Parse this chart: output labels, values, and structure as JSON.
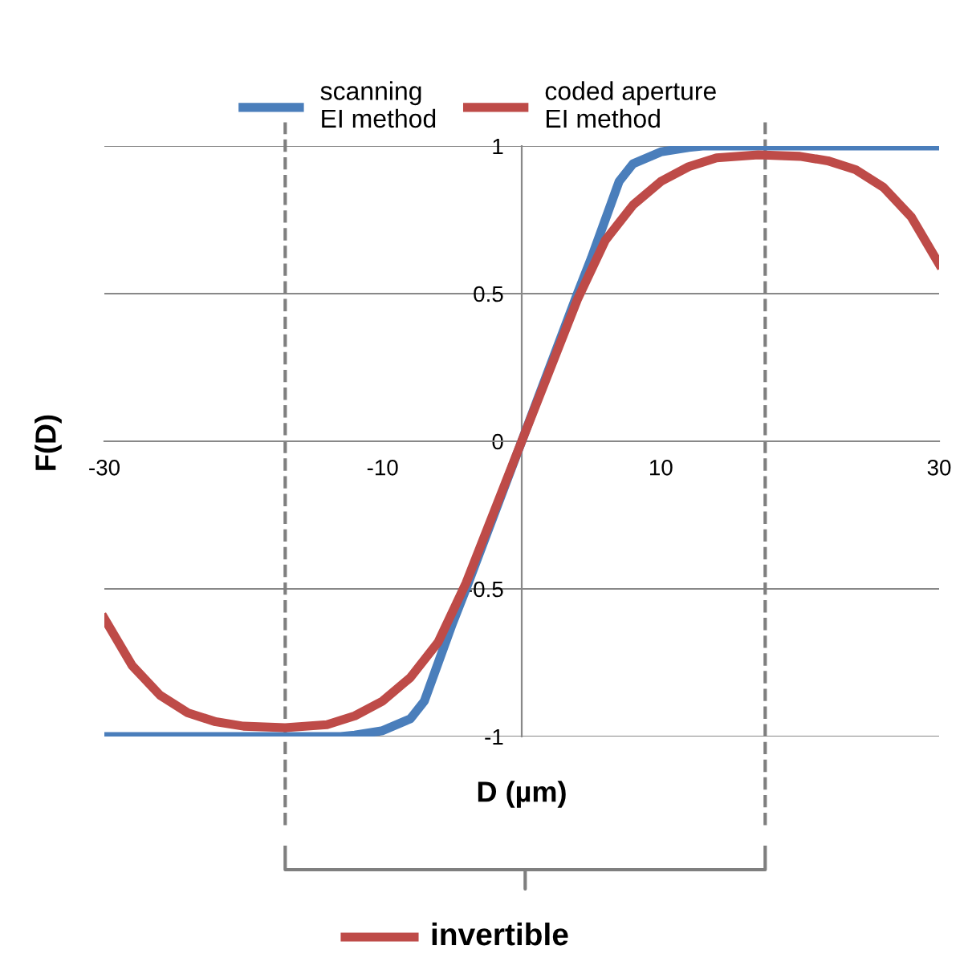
{
  "chart_data": {
    "type": "line",
    "xlabel": "D (µm)",
    "ylabel": "F(D)",
    "xlim": [
      -30,
      30
    ],
    "xticks": [
      -30,
      -10,
      10,
      30
    ],
    "ylim": [
      -1,
      1
    ],
    "yticks": [
      -1,
      -0.5,
      0,
      0.5,
      1
    ],
    "grid": "y",
    "legend": "top",
    "marker": "none",
    "line_style": "solid",
    "series": [
      {
        "name": "scanning\nEI method",
        "color": "#4a7ebb",
        "x": [
          -30,
          -13,
          -12,
          -10,
          -8,
          -7,
          -6,
          -5,
          -4,
          -2,
          0,
          2,
          4,
          5,
          6,
          7,
          8,
          10,
          12,
          13,
          30
        ],
        "values": [
          -1,
          -1,
          -0.995,
          -0.98,
          -0.94,
          -0.88,
          -0.75,
          -0.62,
          -0.5,
          -0.25,
          0,
          0.25,
          0.5,
          0.62,
          0.75,
          0.88,
          0.94,
          0.98,
          0.995,
          1,
          1
        ]
      },
      {
        "name": "coded aperture\nEI method",
        "color": "#be4b48",
        "x": [
          -30,
          -28,
          -26,
          -24,
          -22,
          -20,
          -17,
          -14,
          -12,
          -10,
          -8,
          -6,
          -4,
          -2,
          0,
          2,
          4,
          6,
          8,
          10,
          12,
          14,
          17,
          20,
          22,
          24,
          26,
          28,
          30
        ],
        "values": [
          -0.6,
          -0.76,
          -0.86,
          -0.92,
          -0.95,
          -0.965,
          -0.97,
          -0.96,
          -0.93,
          -0.88,
          -0.8,
          -0.68,
          -0.48,
          -0.24,
          0,
          0.24,
          0.48,
          0.68,
          0.8,
          0.88,
          0.93,
          0.96,
          0.97,
          0.965,
          0.95,
          0.92,
          0.86,
          0.76,
          0.6
        ]
      }
    ],
    "ref_lines": [
      {
        "axis": "x",
        "value": -17,
        "color": "#7f7f7f",
        "line_style": "dashed"
      },
      {
        "axis": "x",
        "value": 17.5,
        "color": "#7f7f7f",
        "line_style": "dashed"
      }
    ],
    "annotations": [
      "invertible"
    ]
  }
}
